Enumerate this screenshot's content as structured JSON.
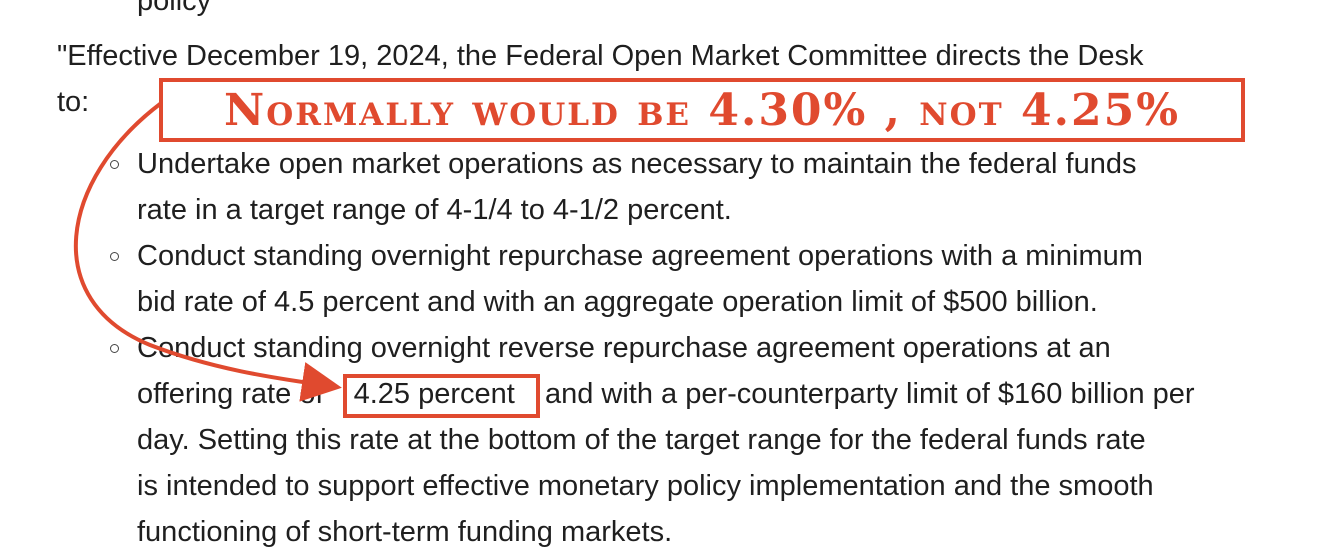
{
  "document": {
    "top_fragment": "policy",
    "intro_line1": "\"Effective December 19, 2024, the Federal Open Market Committee directs the Desk",
    "intro_line2": "to:",
    "annotation": {
      "text": "Normally would be 4.30% , not 4.25%",
      "color": "#e04a2f"
    },
    "bullets": [
      {
        "lines": [
          "Undertake open market operations as necessary to maintain the federal funds",
          "rate in a target range of 4-1/4 to 4-1/2 percent."
        ]
      },
      {
        "lines": [
          "Conduct standing overnight repurchase agreement operations with a minimum",
          "bid rate of 4.5 percent and with an aggregate operation limit of $500 billion."
        ]
      },
      {
        "line1": "Conduct standing overnight reverse repurchase agreement operations at an",
        "line2_before": "offering rate of",
        "line2_highlight": "4.25 percent",
        "line2_after": "and with a per-counterparty limit of $160 billion per",
        "lines_rest": [
          "day. Setting this rate at the bottom of the target range for the federal funds rate",
          "is intended to support effective monetary policy implementation and the smooth",
          "functioning of short-term funding markets."
        ]
      }
    ]
  }
}
